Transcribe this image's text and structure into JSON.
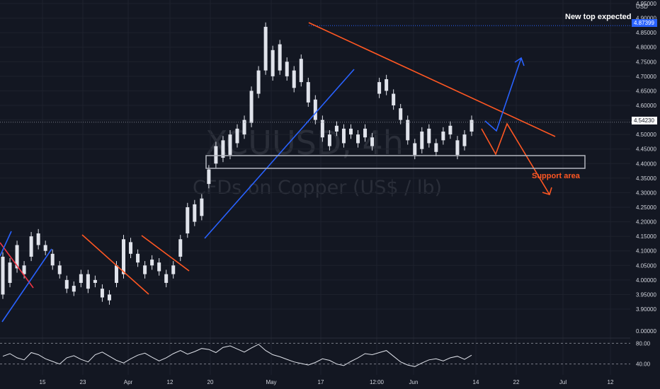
{
  "chart_data": {
    "type": "candlestick",
    "symbol": "XCUUSD, 4h",
    "description": "CFDs on Copper (US$ / lb)",
    "currency": "USD",
    "ylim": [
      3.86,
      4.95
    ],
    "y_ticks": [
      4.95,
      4.9,
      4.85,
      4.8,
      4.75,
      4.7,
      4.65,
      4.6,
      4.55,
      4.5,
      4.45,
      4.4,
      4.35,
      4.3,
      4.25,
      4.2,
      4.15,
      4.1,
      4.05,
      4.0,
      3.95,
      3.9
    ],
    "y_tick_labels": [
      "4.95000",
      "4.90000",
      "4.85000",
      "4.80000",
      "4.75000",
      "4.70000",
      "4.65000",
      "4.60000",
      "4.55000",
      "4.50000",
      "4.45000",
      "4.40000",
      "4.35000",
      "4.30000",
      "4.25000",
      "4.20000",
      "4.15000",
      "4.10000",
      "4.05000",
      "4.00000",
      "3.95000",
      "3.90000"
    ],
    "x_ticks": [
      "15",
      "23",
      "Apr",
      "12",
      "20",
      "May",
      "17",
      "12:00",
      "Jun",
      "14",
      "22",
      "Jul",
      "12"
    ],
    "price_series": [
      [
        3.95,
        4.08
      ],
      [
        3.99,
        4.06
      ],
      [
        4.04,
        4.12
      ],
      [
        4.02,
        4.05
      ],
      [
        4.08,
        4.15
      ],
      [
        4.12,
        4.16
      ],
      [
        4.1,
        4.12
      ],
      [
        4.05,
        4.09
      ],
      [
        4.02,
        4.05
      ],
      [
        3.97,
        4.0
      ],
      [
        3.96,
        3.98
      ],
      [
        3.99,
        4.02
      ],
      [
        3.97,
        4.02
      ],
      [
        3.99,
        4.0
      ],
      [
        3.94,
        3.97
      ],
      [
        3.93,
        3.95
      ],
      [
        3.99,
        4.05
      ],
      [
        4.02,
        4.14
      ],
      [
        4.09,
        4.13
      ],
      [
        4.06,
        4.09
      ],
      [
        4.02,
        4.05
      ],
      [
        4.05,
        4.07
      ],
      [
        4.03,
        4.06
      ],
      [
        3.99,
        4.02
      ],
      [
        4.02,
        4.05
      ],
      [
        4.08,
        4.14
      ],
      [
        4.16,
        4.25
      ],
      [
        4.2,
        4.26
      ],
      [
        4.22,
        4.28
      ],
      [
        4.33,
        4.38
      ],
      [
        4.4,
        4.46
      ],
      [
        4.42,
        4.48
      ],
      [
        4.43,
        4.5
      ],
      [
        4.47,
        4.52
      ],
      [
        4.5,
        4.55
      ],
      [
        4.54,
        4.65
      ],
      [
        4.64,
        4.72
      ],
      [
        4.72,
        4.87
      ],
      [
        4.7,
        4.79
      ],
      [
        4.72,
        4.81
      ],
      [
        4.7,
        4.75
      ],
      [
        4.66,
        4.72
      ],
      [
        4.68,
        4.76
      ],
      [
        4.61,
        4.68
      ],
      [
        4.55,
        4.62
      ],
      [
        4.49,
        4.55
      ],
      [
        4.46,
        4.5
      ],
      [
        4.51,
        4.53
      ],
      [
        4.47,
        4.52
      ],
      [
        4.5,
        4.52
      ],
      [
        4.47,
        4.5
      ],
      [
        4.49,
        4.52
      ],
      [
        4.46,
        4.49
      ],
      [
        4.64,
        4.68
      ],
      [
        4.65,
        4.69
      ],
      [
        4.6,
        4.64
      ],
      [
        4.55,
        4.59
      ],
      [
        4.48,
        4.55
      ],
      [
        4.43,
        4.47
      ],
      [
        4.45,
        4.51
      ],
      [
        4.47,
        4.52
      ],
      [
        4.44,
        4.47
      ],
      [
        4.48,
        4.51
      ],
      [
        4.5,
        4.53
      ],
      [
        4.43,
        4.48
      ],
      [
        4.46,
        4.5
      ],
      [
        4.51,
        4.55
      ]
    ],
    "last_price": 4.5423,
    "last_price_label": "4.54230",
    "target_price": 4.87399,
    "target_price_label": "4.87399",
    "rsi": {
      "levels": [
        80,
        40
      ],
      "level_labels": [
        "80.00",
        "40.00"
      ],
      "zero_label": "0.00000",
      "values": [
        55,
        60,
        52,
        48,
        62,
        58,
        50,
        45,
        40,
        52,
        56,
        49,
        44,
        58,
        63,
        55,
        47,
        42,
        50,
        57,
        61,
        53,
        46,
        52,
        60,
        66,
        59,
        64,
        70,
        68,
        62,
        72,
        75,
        69,
        63,
        71,
        78,
        66,
        58,
        54,
        49,
        44,
        41,
        38,
        43,
        50,
        47,
        40,
        37,
        45,
        52,
        60,
        58,
        62,
        66,
        55,
        44,
        38,
        35,
        42,
        48,
        50,
        46,
        52,
        55,
        49,
        57
      ]
    },
    "annotations": {
      "top_label": "New top expected",
      "support_label": "Support area"
    }
  },
  "colors": {
    "background": "#131722",
    "grid": "#1e222d",
    "candle": "#e0e3eb",
    "trend_red": "#f23645",
    "trend_orange": "#ff5722",
    "trend_blue": "#2962ff",
    "support_box": "#b2b5be",
    "rsi_line": "#e0e3eb",
    "price_tag": "#ffffff"
  }
}
